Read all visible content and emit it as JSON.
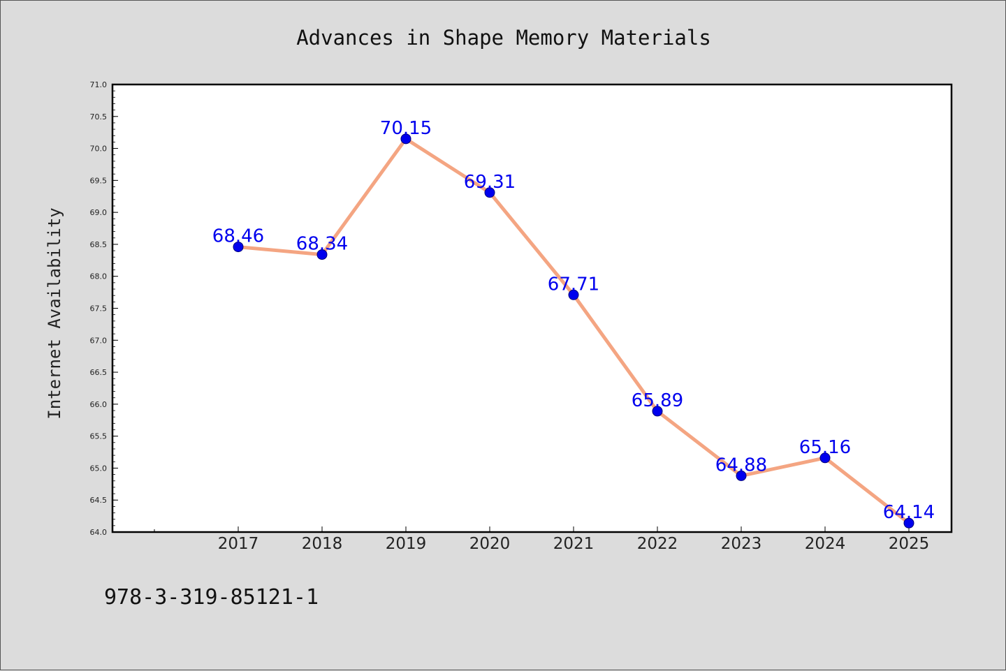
{
  "chart_data": {
    "type": "line",
    "title": "Advances in Shape Memory Materials",
    "xlabel": "",
    "ylabel": "Internet Availability",
    "categories": [
      "2017",
      "2018",
      "2019",
      "2020",
      "2021",
      "2022",
      "2023",
      "2024",
      "2025"
    ],
    "series": [
      {
        "values": [
          68.46,
          68.34,
          70.15,
          69.31,
          67.71,
          65.89,
          64.88,
          65.16,
          64.14
        ],
        "data_labels": [
          "68.46",
          "68.34",
          "70.15",
          "69.31",
          "67.71",
          "65.89",
          "64.88",
          "65.16",
          "64.14"
        ]
      }
    ],
    "ylim": [
      64.0,
      71.0
    ],
    "yticks": [
      "64.0",
      "64.5",
      "65.0",
      "65.5",
      "66.0",
      "66.5",
      "67.0",
      "67.5",
      "68.0",
      "68.5",
      "69.0",
      "69.5",
      "70.0",
      "70.5",
      "71.0"
    ],
    "grid": false,
    "colors": {
      "line": "#f4a582",
      "marker": "#0000ee",
      "label": "#0000ee"
    }
  },
  "footer": {
    "isbn": "978-3-319-85121-1"
  }
}
